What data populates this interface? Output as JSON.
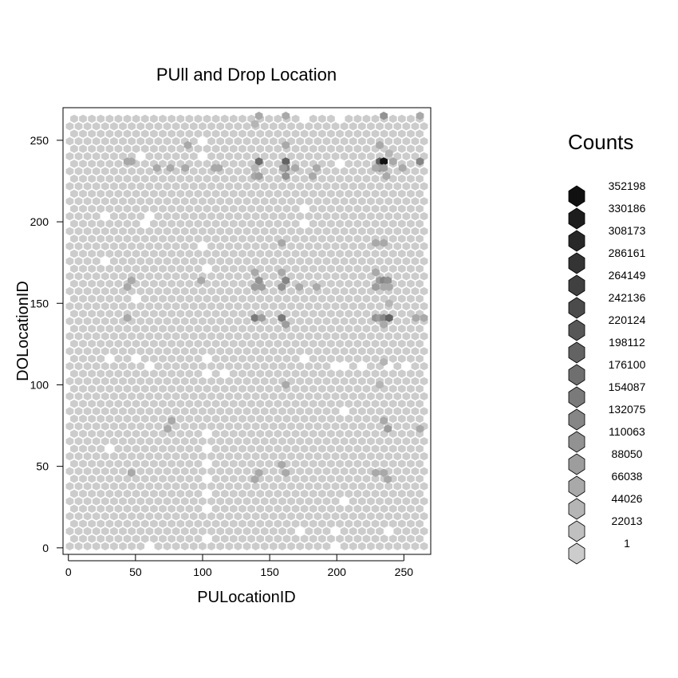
{
  "chart_data": {
    "type": "heatmap",
    "title": "PUll and Drop Location",
    "xlabel": "PULocationID",
    "ylabel": "DOLocationID",
    "xlim": [
      -4,
      270
    ],
    "ylim": [
      -4,
      270
    ],
    "x_ticks": [
      0,
      50,
      100,
      150,
      200,
      250
    ],
    "y_ticks": [
      0,
      50,
      100,
      150,
      200,
      250
    ],
    "grid": false,
    "legend_position": "right",
    "legend": {
      "title": "Counts",
      "levels": [
        "352198",
        "330186",
        "308173",
        "286161",
        "264149",
        "242136",
        "220124",
        "198112",
        "176100",
        "154087",
        "132075",
        "110063",
        "88050",
        "66038",
        "44026",
        "22013",
        "1"
      ]
    },
    "colors": {
      "background_cells": "#cccccc",
      "empty_cells": "#ffffff",
      "max_cells": "#111111"
    },
    "cell_grid": {
      "x_min": 1,
      "x_max": 265,
      "x_step": 6.6,
      "y_min": 1,
      "y_max": 265,
      "y_step": 4.6,
      "base_count": 1
    },
    "empty_cells": [
      [
        102,
        251
      ],
      [
        102,
        242
      ],
      [
        56,
        242
      ],
      [
        30,
        205
      ],
      [
        57,
        205
      ],
      [
        62,
        205
      ],
      [
        59,
        201
      ],
      [
        175,
        210
      ],
      [
        175,
        201
      ],
      [
        102,
        187
      ],
      [
        102,
        169
      ],
      [
        30,
        178
      ],
      [
        53,
        155
      ],
      [
        175,
        118
      ],
      [
        33,
        118
      ],
      [
        53,
        118
      ],
      [
        59,
        110
      ],
      [
        102,
        114
      ],
      [
        102,
        105
      ],
      [
        119,
        105
      ],
      [
        200,
        110
      ],
      [
        205,
        110
      ],
      [
        221,
        110
      ],
      [
        241,
        110
      ],
      [
        251,
        110
      ],
      [
        205,
        82
      ],
      [
        30,
        60
      ],
      [
        102,
        69
      ],
      [
        102,
        60
      ],
      [
        102,
        51
      ],
      [
        102,
        42
      ],
      [
        102,
        33
      ],
      [
        102,
        24
      ],
      [
        102,
        5
      ],
      [
        205,
        28
      ],
      [
        175,
        10
      ],
      [
        200,
        10
      ],
      [
        241,
        10
      ],
      [
        59,
        1
      ],
      [
        200,
        1
      ],
      [
        175,
        265
      ],
      [
        205,
        265
      ],
      [
        205,
        237
      ]
    ],
    "cells": [
      [
        142,
        237,
        176100
      ],
      [
        162,
        237,
        198112
      ],
      [
        162,
        233,
        132075
      ],
      [
        162,
        228,
        110063
      ],
      [
        160,
        233,
        88050
      ],
      [
        139,
        228,
        66038
      ],
      [
        142,
        228,
        88050
      ],
      [
        139,
        233,
        44026
      ],
      [
        232,
        237,
        198112
      ],
      [
        235,
        237,
        352198
      ],
      [
        232,
        233,
        110063
      ],
      [
        235,
        233,
        88050
      ],
      [
        229,
        233,
        66038
      ],
      [
        237,
        228,
        66038
      ],
      [
        242,
        237,
        66038
      ],
      [
        239,
        242,
        44026
      ],
      [
        232,
        247,
        66038
      ],
      [
        262,
        237,
        132075
      ],
      [
        249,
        233,
        66038
      ],
      [
        44,
        237,
        66038
      ],
      [
        47,
        237,
        66038
      ],
      [
        66,
        233,
        66038
      ],
      [
        76,
        233,
        66038
      ],
      [
        87,
        233,
        66038
      ],
      [
        89,
        247,
        66038
      ],
      [
        109,
        233,
        66038
      ],
      [
        112,
        233,
        66038
      ],
      [
        169,
        233,
        66038
      ],
      [
        182,
        228,
        66038
      ],
      [
        185,
        233,
        66038
      ],
      [
        162,
        247,
        66038
      ],
      [
        142,
        265,
        66038
      ],
      [
        139,
        260,
        44026
      ],
      [
        162,
        265,
        66038
      ],
      [
        235,
        265,
        110063
      ],
      [
        262,
        265,
        66038
      ],
      [
        159,
        187,
        66038
      ],
      [
        229,
        187,
        66038
      ],
      [
        235,
        187,
        66038
      ],
      [
        142,
        164,
        110063
      ],
      [
        139,
        169,
        66038
      ],
      [
        139,
        160,
        88050
      ],
      [
        144,
        160,
        88050
      ],
      [
        159,
        169,
        66038
      ],
      [
        162,
        164,
        132075
      ],
      [
        159,
        160,
        110063
      ],
      [
        172,
        160,
        66038
      ],
      [
        185,
        160,
        66038
      ],
      [
        99,
        164,
        66038
      ],
      [
        47,
        164,
        66038
      ],
      [
        44,
        160,
        66038
      ],
      [
        229,
        169,
        66038
      ],
      [
        232,
        164,
        88050
      ],
      [
        235,
        164,
        132075
      ],
      [
        238,
        164,
        110063
      ],
      [
        229,
        160,
        88050
      ],
      [
        235,
        160,
        66038
      ],
      [
        239,
        160,
        66038
      ],
      [
        239,
        150,
        44026
      ],
      [
        139,
        141,
        154087
      ],
      [
        144,
        141,
        88050
      ],
      [
        159,
        141,
        154087
      ],
      [
        162,
        137,
        88050
      ],
      [
        44,
        141,
        66038
      ],
      [
        229,
        141,
        110063
      ],
      [
        232,
        141,
        88050
      ],
      [
        235,
        141,
        132075
      ],
      [
        239,
        141,
        198112
      ],
      [
        235,
        137,
        66038
      ],
      [
        259,
        141,
        66038
      ],
      [
        265,
        141,
        66038
      ],
      [
        232,
        100,
        44026
      ],
      [
        235,
        114,
        44026
      ],
      [
        162,
        100,
        66038
      ],
      [
        74,
        73,
        66038
      ],
      [
        77,
        78,
        66038
      ],
      [
        235,
        78,
        66038
      ],
      [
        238,
        73,
        88050
      ],
      [
        262,
        73,
        66038
      ],
      [
        47,
        46,
        66038
      ],
      [
        139,
        42,
        66038
      ],
      [
        142,
        46,
        66038
      ],
      [
        159,
        51,
        66038
      ],
      [
        162,
        46,
        66038
      ],
      [
        229,
        46,
        66038
      ],
      [
        235,
        46,
        66038
      ],
      [
        238,
        42,
        66038
      ]
    ]
  }
}
